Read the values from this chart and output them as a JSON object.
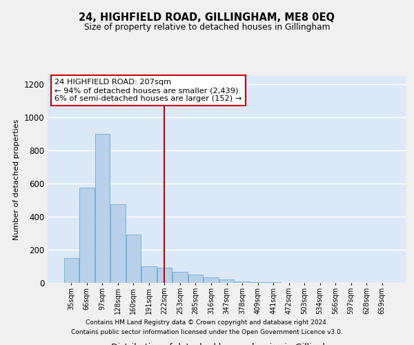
{
  "title": "24, HIGHFIELD ROAD, GILLINGHAM, ME8 0EQ",
  "subtitle": "Size of property relative to detached houses in Gillingham",
  "xlabel": "Distribution of detached houses by size in Gillingham",
  "ylabel": "Number of detached properties",
  "bar_labels": [
    "35sqm",
    "66sqm",
    "97sqm",
    "128sqm",
    "160sqm",
    "191sqm",
    "222sqm",
    "253sqm",
    "285sqm",
    "316sqm",
    "347sqm",
    "378sqm",
    "409sqm",
    "441sqm",
    "472sqm",
    "503sqm",
    "534sqm",
    "566sqm",
    "597sqm",
    "628sqm",
    "659sqm"
  ],
  "bar_values": [
    150,
    575,
    900,
    475,
    290,
    100,
    90,
    65,
    50,
    35,
    20,
    10,
    5,
    3,
    2,
    1,
    0,
    0,
    0,
    0,
    0
  ],
  "bar_color": "#b8d0e8",
  "bar_edge_color": "#6aaad4",
  "ylim": [
    0,
    1250
  ],
  "yticks": [
    0,
    200,
    400,
    600,
    800,
    1000,
    1200
  ],
  "property_line_x": 6.0,
  "property_line_color": "#cc0000",
  "annotation_text": "24 HIGHFIELD ROAD: 207sqm\n← 94% of detached houses are smaller (2,439)\n6% of semi-detached houses are larger (152) →",
  "annotation_box_color": "#ffffff",
  "annotation_box_edge": "#cc0000",
  "footnote1": "Contains HM Land Registry data © Crown copyright and database right 2024.",
  "footnote2": "Contains public sector information licensed under the Open Government Licence v3.0.",
  "plot_bg": "#dce8f5",
  "grid_color": "#ffffff",
  "fig_bg": "#f0f0f0"
}
